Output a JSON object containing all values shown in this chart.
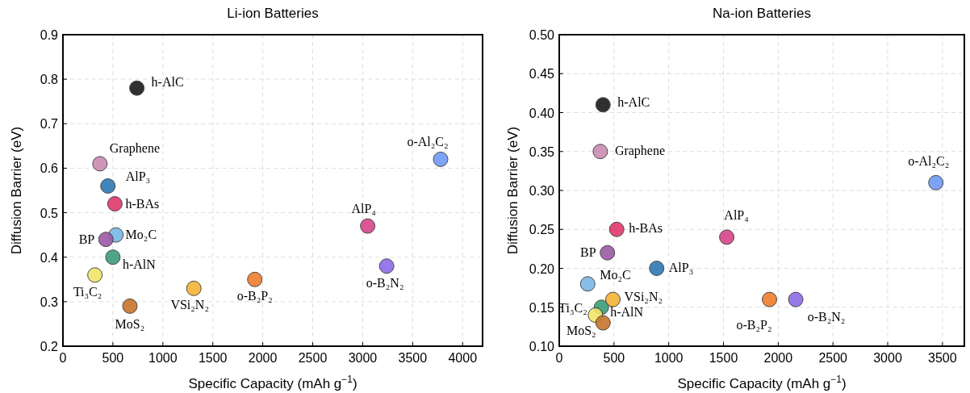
{
  "chart_data": [
    {
      "type": "scatter",
      "title": "Li-ion Batteries",
      "xlabel": "Specific Capacity (mAh g$^{−1}$)",
      "ylabel": "Diffusion Barrier (eV)",
      "xlim": [
        0,
        4200
      ],
      "xticks": [
        0,
        500,
        1000,
        1500,
        2000,
        2500,
        3000,
        3500,
        4000
      ],
      "ylim": [
        0.2,
        0.9
      ],
      "yticks": [
        0.2,
        0.3,
        0.4,
        0.5,
        0.6,
        0.7,
        0.8,
        0.9
      ],
      "grid": true,
      "marker": "circle",
      "series": [
        {
          "name": "h-AlC",
          "color": "#1a1a1a",
          "x": [
            740
          ],
          "values": [
            0.78
          ]
        },
        {
          "name": "Graphene",
          "color": "#c98bb0",
          "x": [
            370
          ],
          "values": [
            0.61
          ]
        },
        {
          "name": "AlP₃",
          "color": "#2e78b5",
          "x": [
            450
          ],
          "values": [
            0.56
          ]
        },
        {
          "name": "h-BAs",
          "color": "#e0386a",
          "x": [
            520
          ],
          "values": [
            0.52
          ]
        },
        {
          "name": "Mo₂C",
          "color": "#7ab8e8",
          "x": [
            530
          ],
          "values": [
            0.45
          ]
        },
        {
          "name": "BP",
          "color": "#9b5aa5",
          "x": [
            430
          ],
          "values": [
            0.44
          ]
        },
        {
          "name": "h-AlN",
          "color": "#3a9e78",
          "x": [
            500
          ],
          "values": [
            0.4
          ]
        },
        {
          "name": "Ti₃C₂",
          "color": "#f2e56a",
          "x": [
            320
          ],
          "values": [
            0.36
          ]
        },
        {
          "name": "MoS₂",
          "color": "#c8742c",
          "x": [
            670
          ],
          "values": [
            0.29
          ]
        },
        {
          "name": "VSi₂N₂",
          "color": "#f5b335",
          "x": [
            1310
          ],
          "values": [
            0.33
          ]
        },
        {
          "name": "o-B₂P₂",
          "color": "#ef7d2d",
          "x": [
            1920
          ],
          "values": [
            0.35
          ]
        },
        {
          "name": "AlP₄",
          "color": "#d6448a",
          "x": [
            3050
          ],
          "values": [
            0.47
          ]
        },
        {
          "name": "o-B₂N₂",
          "color": "#8c6be8",
          "x": [
            3240
          ],
          "values": [
            0.38
          ]
        },
        {
          "name": "o-Al₂C₂",
          "color": "#6f9af5",
          "x": [
            3780
          ],
          "values": [
            0.62
          ]
        }
      ]
    },
    {
      "type": "scatter",
      "title": "Na-ion Batteries",
      "xlabel": "Specific Capacity (mAh g$^{−1}$)",
      "ylabel": "Diffusion Barrier (eV)",
      "xlim": [
        0,
        3700
      ],
      "xticks": [
        0,
        500,
        1000,
        1500,
        2000,
        2500,
        3000,
        3500
      ],
      "ylim": [
        0.1,
        0.5
      ],
      "yticks": [
        {
          "value": 0.1,
          "label": "0.10"
        },
        {
          "value": 0.15,
          "label": "0.15"
        },
        {
          "value": 0.2,
          "label": "0.20"
        },
        {
          "value": 0.25,
          "label": "0.25"
        },
        {
          "value": 0.3,
          "label": "0.30"
        },
        {
          "value": 0.35,
          "label": "0.35"
        },
        {
          "value": 0.4,
          "label": "0.40"
        },
        {
          "value": 0.45,
          "label": "0.45"
        },
        {
          "value": 0.5,
          "label": "0.50"
        }
      ],
      "grid": true,
      "marker": "circle",
      "series": [
        {
          "name": "h-AlC",
          "color": "#1a1a1a",
          "x": [
            400
          ],
          "values": [
            0.41
          ]
        },
        {
          "name": "Graphene",
          "color": "#c98bb0",
          "x": [
            375
          ],
          "values": [
            0.35
          ]
        },
        {
          "name": "AlP₃",
          "color": "#2e78b5",
          "x": [
            890
          ],
          "values": [
            0.2
          ]
        },
        {
          "name": "h-BAs",
          "color": "#e0386a",
          "x": [
            525
          ],
          "values": [
            0.25
          ]
        },
        {
          "name": "Mo₂C",
          "color": "#7ab8e8",
          "x": [
            260
          ],
          "values": [
            0.18
          ]
        },
        {
          "name": "BP",
          "color": "#9b5aa5",
          "x": [
            440
          ],
          "values": [
            0.22
          ]
        },
        {
          "name": "h-AlN",
          "color": "#3a9e78",
          "x": [
            385
          ],
          "values": [
            0.15
          ]
        },
        {
          "name": "Ti₃C₂",
          "color": "#f2e56a",
          "x": [
            330
          ],
          "values": [
            0.14
          ]
        },
        {
          "name": "MoS₂",
          "color": "#c8742c",
          "x": [
            400
          ],
          "values": [
            0.13
          ]
        },
        {
          "name": "VSi₂N₂",
          "color": "#f5b335",
          "x": [
            490
          ],
          "values": [
            0.16
          ]
        },
        {
          "name": "o-B₂P₂",
          "color": "#ef7d2d",
          "x": [
            1920
          ],
          "values": [
            0.16
          ]
        },
        {
          "name": "AlP₄",
          "color": "#d6448a",
          "x": [
            1530
          ],
          "values": [
            0.24
          ]
        },
        {
          "name": "o-B₂N₂",
          "color": "#8c6be8",
          "x": [
            2160
          ],
          "values": [
            0.16
          ]
        },
        {
          "name": "o-Al₂C₂",
          "color": "#6f9af5",
          "x": [
            3440
          ],
          "values": [
            0.31
          ]
        }
      ]
    }
  ]
}
